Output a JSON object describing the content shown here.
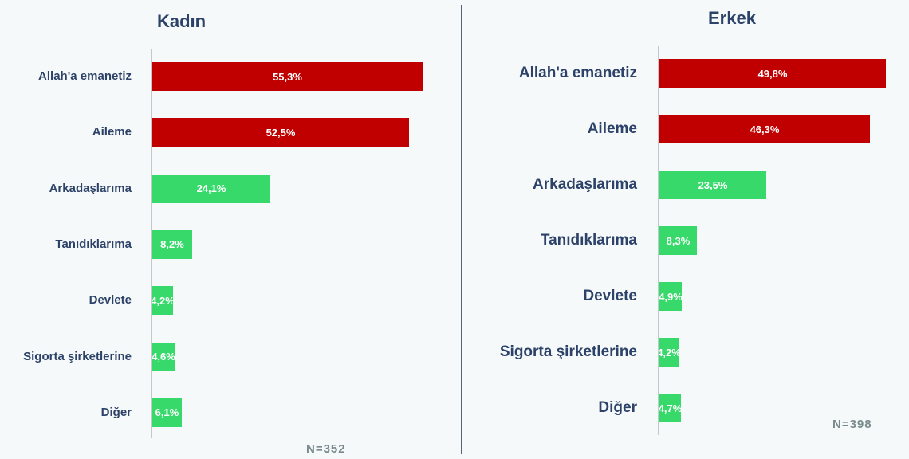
{
  "colors": {
    "red": "#c00000",
    "green": "#38d96b",
    "text": "#2d4268",
    "background": "#f5f9fa"
  },
  "chart_data": [
    {
      "type": "bar",
      "orientation": "horizontal",
      "title": "Kadın",
      "categories": [
        "Allah'a emanetiz",
        "Aileme",
        "Arkadaşlarıma",
        "Tanıdıklarıma",
        "Devlete",
        "Sigorta şirketlerine",
        "Diğer"
      ],
      "values": [
        55.3,
        52.5,
        24.1,
        8.2,
        4.2,
        4.6,
        6.1
      ],
      "value_labels": [
        "55,3%",
        "52,5%",
        "24,1%",
        "8,2%",
        "4,2%",
        "4,6%",
        "6,1%"
      ],
      "bar_colors": [
        "#c00000",
        "#c00000",
        "#38d96b",
        "#38d96b",
        "#38d96b",
        "#38d96b",
        "#38d96b"
      ],
      "n_label": "N=352",
      "xlabel": "",
      "ylabel": "",
      "grid": false
    },
    {
      "type": "bar",
      "orientation": "horizontal",
      "title": "Erkek",
      "categories": [
        "Allah'a emanetiz",
        "Aileme",
        "Arkadaşlarıma",
        "Tanıdıklarıma",
        "Devlete",
        "Sigorta şirketlerine",
        "Diğer"
      ],
      "values": [
        49.8,
        46.3,
        23.5,
        8.3,
        4.9,
        4.2,
        4.7
      ],
      "value_labels": [
        "49,8%",
        "46,3%",
        "23,5%",
        "8,3%",
        "4,9%",
        "4,2%",
        "4,7%"
      ],
      "bar_colors": [
        "#c00000",
        "#c00000",
        "#38d96b",
        "#38d96b",
        "#38d96b",
        "#38d96b",
        "#38d96b"
      ],
      "n_label": "N=398",
      "xlabel": "",
      "ylabel": "",
      "grid": false
    }
  ]
}
